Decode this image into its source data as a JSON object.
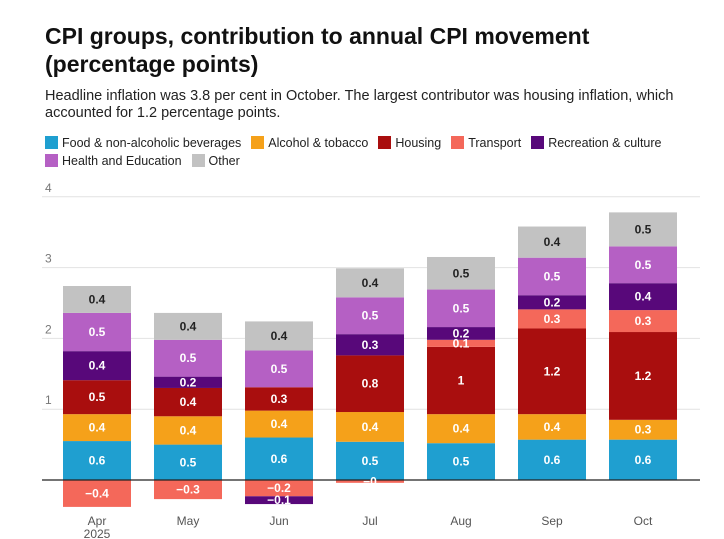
{
  "chart_data": {
    "type": "bar",
    "stacked": true,
    "title": "CPI groups, contribution to annual CPI movement (percentage points)",
    "subtitle": "Headline inflation was 3.8 per cent in October. The largest contributor was housing inflation, which accounted for 1.2 percentage points.",
    "categories": [
      "Apr",
      "May",
      "Jun",
      "Jul",
      "Aug",
      "Sep",
      "Oct"
    ],
    "category_sublabels": [
      "2025",
      "",
      "",
      "",
      "",
      "",
      ""
    ],
    "ylim": [
      -0.5,
      4
    ],
    "yticks": [
      1,
      2,
      3,
      4
    ],
    "grid": true,
    "legend_position": "top",
    "series": [
      {
        "name": "Food & non-alcoholic beverages",
        "color": "#1f9fd0",
        "values": [
          0.55,
          0.5,
          0.6,
          0.54,
          0.52,
          0.57,
          0.57
        ],
        "labels": [
          "0.6",
          "0.5",
          "0.6",
          "0.5",
          "0.5",
          "0.6",
          "0.6"
        ]
      },
      {
        "name": "Alcohol & tobacco",
        "color": "#f5a11a",
        "values": [
          0.38,
          0.4,
          0.38,
          0.42,
          0.41,
          0.36,
          0.28
        ],
        "labels": [
          "0.4",
          "0.4",
          "0.4",
          "0.4",
          "0.4",
          "0.4",
          "0.3"
        ]
      },
      {
        "name": "Housing",
        "color": "#a90e0e",
        "values": [
          0.48,
          0.4,
          0.33,
          0.8,
          0.95,
          1.21,
          1.24
        ],
        "labels": [
          "0.5",
          "0.4",
          "0.3",
          "0.8",
          "1",
          "1.2",
          "1.2"
        ]
      },
      {
        "name": "Transport",
        "color": "#f4685a",
        "values": [
          -0.38,
          -0.27,
          -0.23,
          -0.04,
          0.1,
          0.27,
          0.31
        ],
        "labels": [
          "−0.4",
          "−0.3",
          "−0.2",
          "−0",
          "0.1",
          "0.3",
          "0.3"
        ]
      },
      {
        "name": "Recreation & culture",
        "color": "#58087a",
        "values": [
          0.41,
          0.16,
          -0.11,
          0.3,
          0.18,
          0.2,
          0.38
        ],
        "labels": [
          "0.4",
          "0.2",
          "−0.1",
          "0.3",
          "0.2",
          "0.2",
          "0.4"
        ]
      },
      {
        "name": "Health and Education",
        "color": "#b560c4",
        "values": [
          0.54,
          0.52,
          0.52,
          0.52,
          0.53,
          0.53,
          0.52
        ],
        "labels": [
          "0.5",
          "0.5",
          "0.5",
          "0.5",
          "0.5",
          "0.5",
          "0.5"
        ]
      },
      {
        "name": "Other",
        "color": "#c2c2c2",
        "values": [
          0.38,
          0.38,
          0.41,
          0.41,
          0.46,
          0.44,
          0.48
        ],
        "labels": [
          "0.4",
          "0.4",
          "0.4",
          "0.4",
          "0.5",
          "0.4",
          "0.5"
        ]
      }
    ]
  }
}
